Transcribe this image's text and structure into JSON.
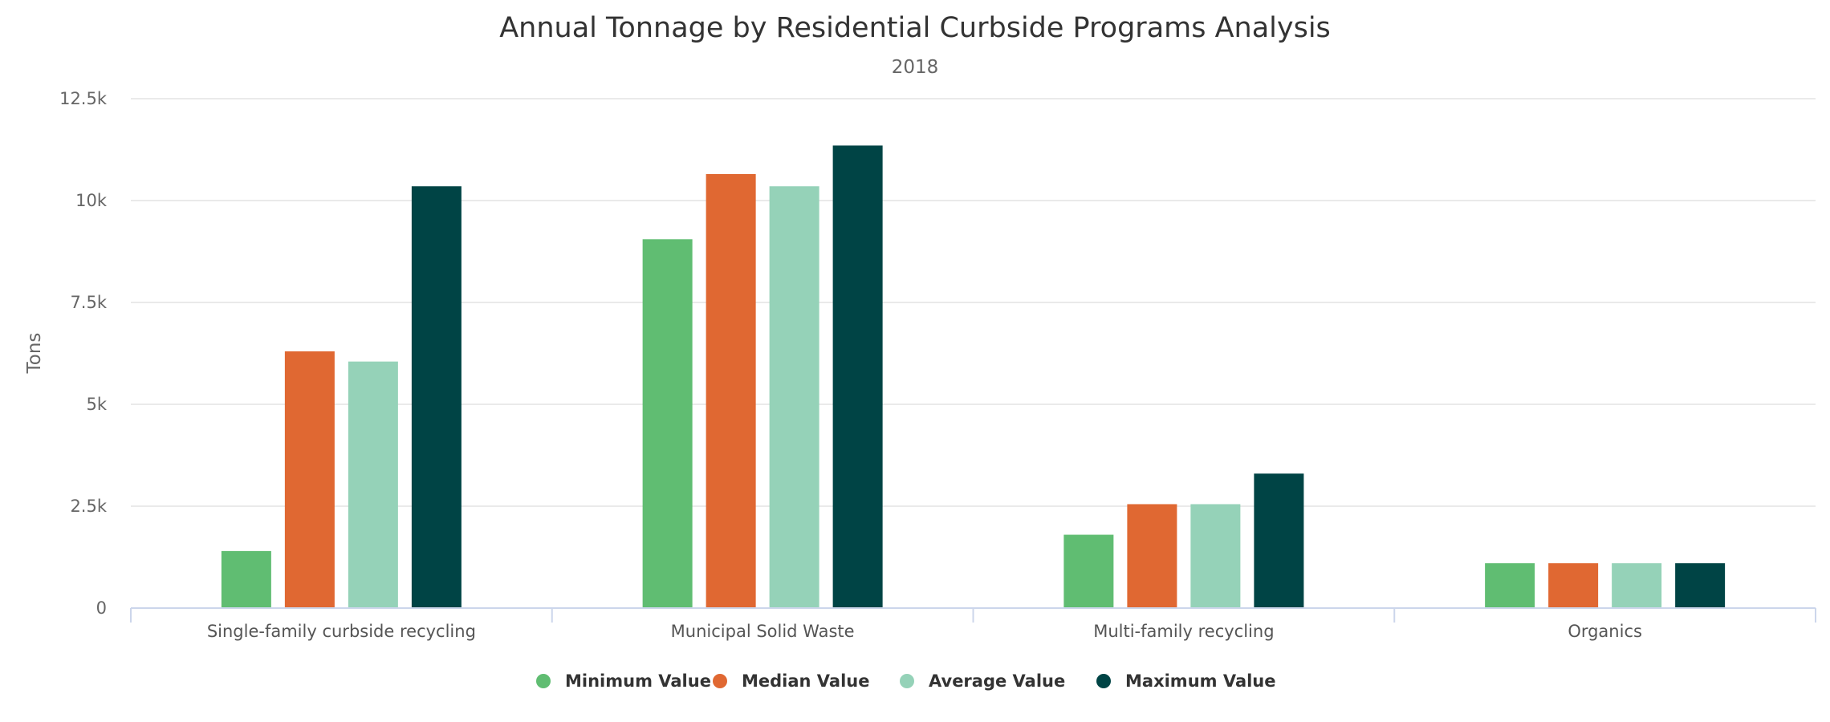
{
  "chart_data": {
    "type": "bar",
    "title": "Annual Tonnage by Residential Curbside Programs Analysis",
    "subtitle": "2018",
    "ylabel": "Tons",
    "xlabel": "",
    "ylim": [
      0,
      12500
    ],
    "yticks": [
      0,
      2500,
      5000,
      7500,
      10000,
      12500
    ],
    "ytick_labels": [
      "0",
      "2.5k",
      "5k",
      "7.5k",
      "10k",
      "12.5k"
    ],
    "categories": [
      "Single-family curbside recycling",
      "Municipal Solid Waste",
      "Multi-family recycling",
      "Organics"
    ],
    "series": [
      {
        "name": "Minimum Value",
        "color": "#60bd72",
        "values": [
          1400,
          9050,
          1800,
          1100
        ]
      },
      {
        "name": "Median Value",
        "color": "#e06832",
        "values": [
          6300,
          10650,
          2550,
          1100
        ]
      },
      {
        "name": "Average Value",
        "color": "#95d2b8",
        "values": [
          6050,
          10350,
          2550,
          1100
        ]
      },
      {
        "name": "Maximum Value",
        "color": "#004445",
        "values": [
          10350,
          11350,
          3300,
          1100
        ]
      }
    ],
    "grid": true,
    "legend_position": "bottom"
  }
}
